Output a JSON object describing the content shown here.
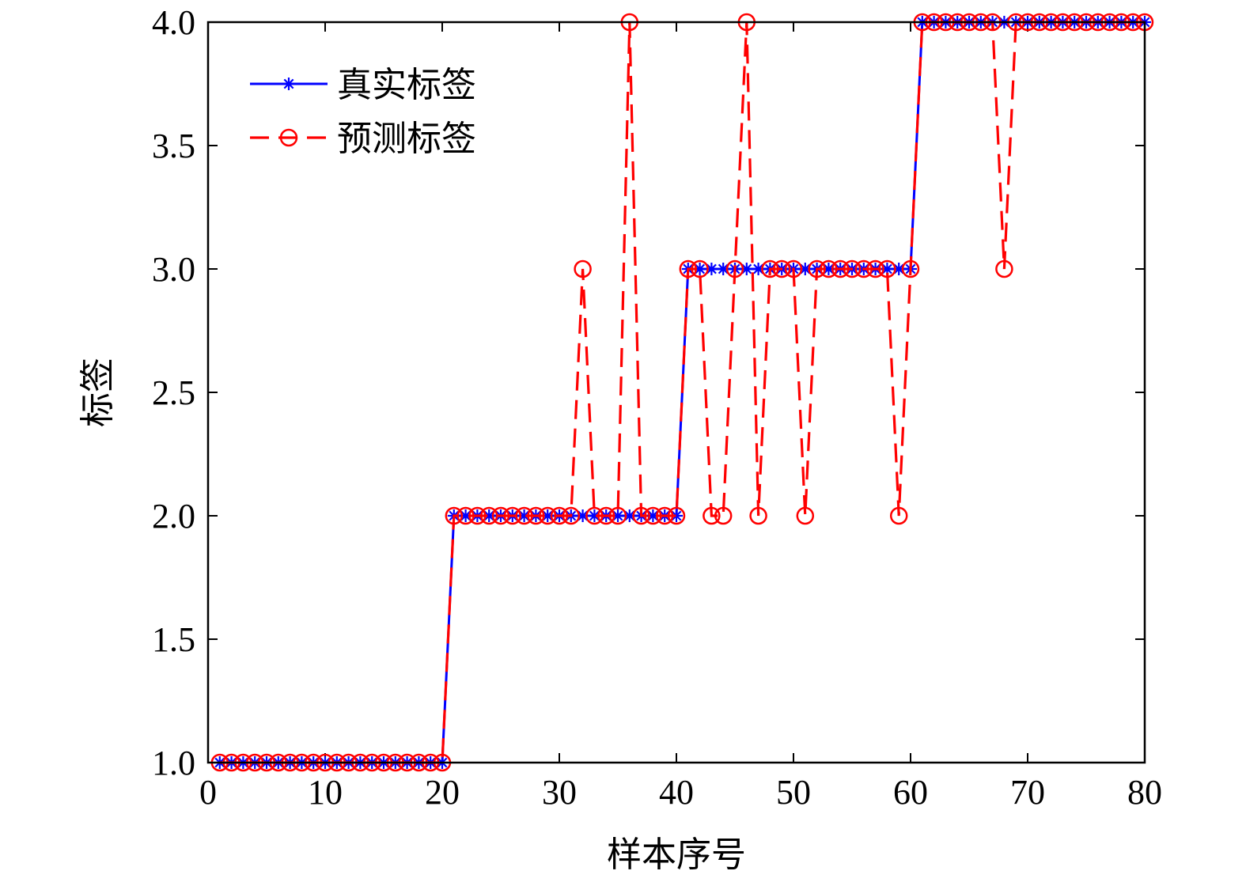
{
  "chart_data": {
    "type": "line",
    "xlabel": "样本序号",
    "ylabel": "标签",
    "xlim": [
      0,
      80
    ],
    "ylim": [
      1,
      4
    ],
    "xticks": [
      0,
      10,
      20,
      30,
      40,
      50,
      60,
      70,
      80
    ],
    "xtick_labels": [
      "0",
      "10",
      "20",
      "30",
      "40",
      "50",
      "60",
      "70",
      "80"
    ],
    "yticks": [
      1,
      1.5,
      2,
      2.5,
      3,
      3.5,
      4
    ],
    "ytick_labels": [
      "1.0",
      "1.5",
      "2.0",
      "2.5",
      "3.0",
      "3.5",
      "4.0"
    ],
    "grid": false,
    "legend_position": "top-left",
    "series": [
      {
        "name": "真实标签",
        "color": "#0000ff",
        "line_style": "solid",
        "marker": "asterisk",
        "x": [
          1,
          2,
          3,
          4,
          5,
          6,
          7,
          8,
          9,
          10,
          11,
          12,
          13,
          14,
          15,
          16,
          17,
          18,
          19,
          20,
          21,
          22,
          23,
          24,
          25,
          26,
          27,
          28,
          29,
          30,
          31,
          32,
          33,
          34,
          35,
          36,
          37,
          38,
          39,
          40,
          41,
          42,
          43,
          44,
          45,
          46,
          47,
          48,
          49,
          50,
          51,
          52,
          53,
          54,
          55,
          56,
          57,
          58,
          59,
          60,
          61,
          62,
          63,
          64,
          65,
          66,
          67,
          68,
          69,
          70,
          71,
          72,
          73,
          74,
          75,
          76,
          77,
          78,
          79,
          80
        ],
        "y": [
          1,
          1,
          1,
          1,
          1,
          1,
          1,
          1,
          1,
          1,
          1,
          1,
          1,
          1,
          1,
          1,
          1,
          1,
          1,
          1,
          2,
          2,
          2,
          2,
          2,
          2,
          2,
          2,
          2,
          2,
          2,
          2,
          2,
          2,
          2,
          2,
          2,
          2,
          2,
          2,
          3,
          3,
          3,
          3,
          3,
          3,
          3,
          3,
          3,
          3,
          3,
          3,
          3,
          3,
          3,
          3,
          3,
          3,
          3,
          3,
          4,
          4,
          4,
          4,
          4,
          4,
          4,
          4,
          4,
          4,
          4,
          4,
          4,
          4,
          4,
          4,
          4,
          4,
          4,
          4
        ]
      },
      {
        "name": "预测标签",
        "color": "#ff0000",
        "line_style": "dashed",
        "marker": "circle",
        "x": [
          1,
          2,
          3,
          4,
          5,
          6,
          7,
          8,
          9,
          10,
          11,
          12,
          13,
          14,
          15,
          16,
          17,
          18,
          19,
          20,
          21,
          22,
          23,
          24,
          25,
          26,
          27,
          28,
          29,
          30,
          31,
          32,
          33,
          34,
          35,
          36,
          37,
          38,
          39,
          40,
          41,
          42,
          43,
          44,
          45,
          46,
          47,
          48,
          49,
          50,
          51,
          52,
          53,
          54,
          55,
          56,
          57,
          58,
          59,
          60,
          61,
          62,
          63,
          64,
          65,
          66,
          67,
          68,
          69,
          70,
          71,
          72,
          73,
          74,
          75,
          76,
          77,
          78,
          79,
          80
        ],
        "y": [
          1,
          1,
          1,
          1,
          1,
          1,
          1,
          1,
          1,
          1,
          1,
          1,
          1,
          1,
          1,
          1,
          1,
          1,
          1,
          1,
          2,
          2,
          2,
          2,
          2,
          2,
          2,
          2,
          2,
          2,
          2,
          3,
          2,
          2,
          2,
          4,
          2,
          2,
          2,
          2,
          3,
          3,
          2,
          2,
          3,
          4,
          2,
          3,
          3,
          3,
          2,
          3,
          3,
          3,
          3,
          3,
          3,
          3,
          2,
          3,
          4,
          4,
          4,
          4,
          4,
          4,
          4,
          3,
          4,
          4,
          4,
          4,
          4,
          4,
          4,
          4,
          4,
          4,
          4,
          4
        ]
      }
    ]
  }
}
